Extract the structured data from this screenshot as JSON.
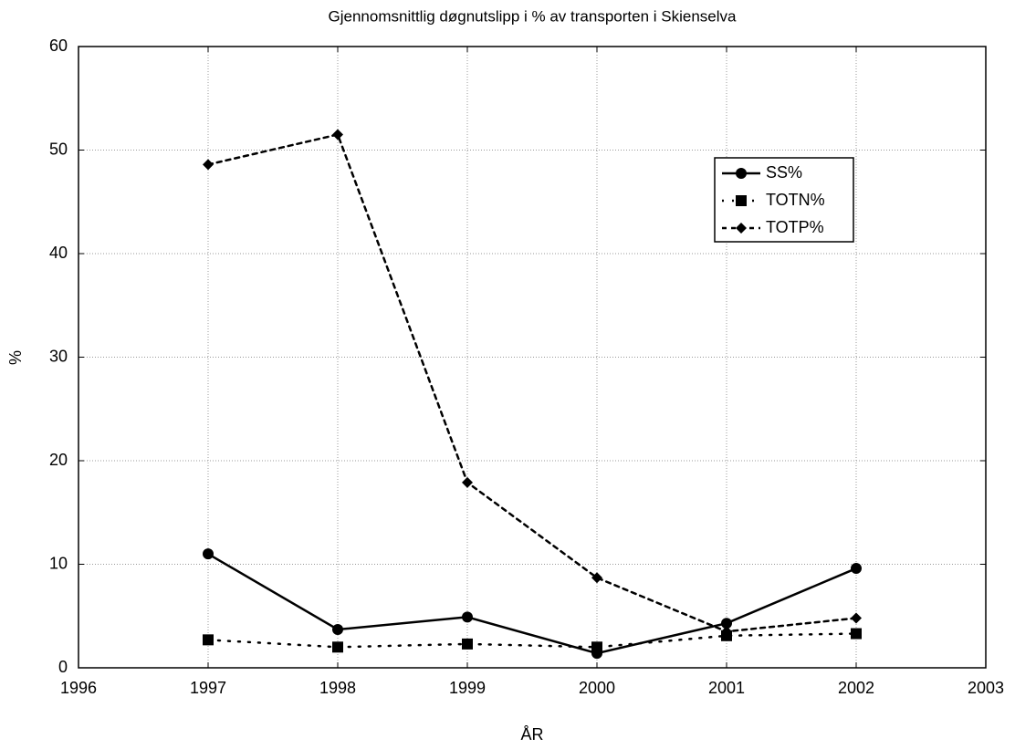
{
  "chart_data": {
    "type": "line",
    "title": "Gjennomsnittlig døgnutslipp i % av transporten i Skienselva",
    "x_label": "ÅR",
    "y_label": "%",
    "x": [
      1997,
      1998,
      1999,
      2000,
      2001,
      2002
    ],
    "series": [
      {
        "name": "SS%",
        "color": "#000000",
        "line_style": "solid",
        "marker": "circle",
        "values": [
          11.0,
          3.7,
          4.9,
          1.4,
          4.3,
          9.6
        ]
      },
      {
        "name": "TOTN%",
        "color": "#000000",
        "line_style": "dotted",
        "marker": "square",
        "values": [
          2.7,
          2.0,
          2.3,
          2.0,
          3.1,
          3.3
        ]
      },
      {
        "name": "TOTP%",
        "color": "#000000",
        "line_style": "dashed",
        "marker": "diamond",
        "values": [
          48.6,
          51.5,
          17.9,
          8.7,
          3.5,
          4.8
        ]
      }
    ],
    "xlim": [
      1996,
      2003
    ],
    "xticks": [
      1996,
      1997,
      1998,
      1999,
      2000,
      2001,
      2002,
      2003
    ],
    "ylim": [
      0,
      60
    ],
    "yticks": [
      0,
      10,
      20,
      30,
      40,
      50,
      60
    ],
    "grid": true,
    "legend": "upper right"
  }
}
